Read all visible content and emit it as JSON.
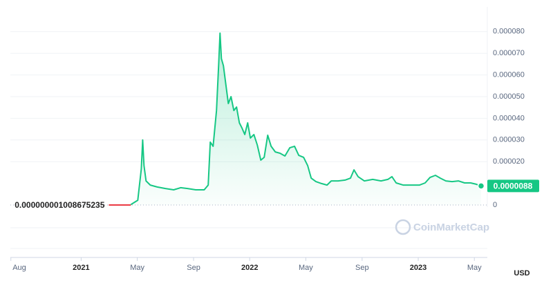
{
  "chart_data": {
    "type": "line",
    "series": [
      {
        "color": "#ea3943",
        "x": [
          2021.164,
          2021.295
        ],
        "values": [
          1.008675235e-09,
          1.008675235e-09
        ]
      },
      {
        "color": "#16c784",
        "fill": true,
        "x": [
          2021.295,
          2021.336,
          2021.357,
          2021.365,
          2021.373,
          2021.385,
          2021.41,
          2021.451,
          2021.5,
          2021.549,
          2021.59,
          2021.631,
          2021.68,
          2021.73,
          2021.754,
          2021.766,
          2021.783,
          2021.803,
          2021.816,
          2021.824,
          2021.832,
          2021.844,
          2021.857,
          2021.873,
          2021.889,
          2021.906,
          2021.922,
          2021.939,
          2021.953,
          2021.971,
          2021.988,
          2022.004,
          2022.025,
          2022.045,
          2022.066,
          2022.086,
          2022.107,
          2022.127,
          2022.152,
          2022.18,
          2022.209,
          2022.238,
          2022.266,
          2022.291,
          2022.32,
          2022.344,
          2022.365,
          2022.393,
          2022.426,
          2022.459,
          2022.484,
          2022.525,
          2022.566,
          2022.598,
          2022.619,
          2022.643,
          2022.68,
          2022.73,
          2022.779,
          2022.82,
          2022.844,
          2022.869,
          2022.91,
          2022.959,
          2023.008,
          2023.041,
          2023.07,
          2023.102,
          2023.131,
          2023.164,
          2023.201,
          2023.238,
          2023.275,
          2023.311,
          2023.344,
          2023.373
        ],
        "values": [
          2e-07,
          2.2e-06,
          1.66e-05,
          3e-05,
          1.82e-05,
          1.11e-05,
          9.2e-06,
          8.3e-06,
          7.6e-06,
          7e-06,
          8e-06,
          7.6e-06,
          7e-06,
          7e-06,
          9.2e-06,
          2.9e-05,
          2.71e-05,
          4.36e-05,
          6.53e-05,
          7.93e-05,
          6.75e-05,
          6.43e-05,
          5.64e-05,
          4.68e-05,
          5e-05,
          4.36e-05,
          4.52e-05,
          3.79e-05,
          3.57e-05,
          3.25e-05,
          3.79e-05,
          3.09e-05,
          3.25e-05,
          2.77e-05,
          2.07e-05,
          2.2e-05,
          3.22e-05,
          2.71e-05,
          2.45e-05,
          2.39e-05,
          2.26e-05,
          2.64e-05,
          2.71e-05,
          2.29e-05,
          2.2e-05,
          1.82e-05,
          1.24e-05,
          1.08e-05,
          9.9e-06,
          9.2e-06,
          1.11e-05,
          1.11e-05,
          1.15e-05,
          1.24e-05,
          1.62e-05,
          1.31e-05,
          1.11e-05,
          1.18e-05,
          1.11e-05,
          1.18e-05,
          1.31e-05,
          1.02e-05,
          9.2e-06,
          9.2e-06,
          9.2e-06,
          1.02e-05,
          1.27e-05,
          1.37e-05,
          1.24e-05,
          1.11e-05,
          1.08e-05,
          1.11e-05,
          1.02e-05,
          1.02e-05,
          9.6e-06,
          8.8e-06
        ]
      }
    ],
    "start_price_label": "0.000000001008675235",
    "last_price_label": "0.0000088",
    "currency_label": "USD",
    "watermark": "CoinMarketCap",
    "xlim": [
      2020.58,
      2023.41
    ],
    "xticks": [
      {
        "value": 2020.583,
        "label": "Aug"
      },
      2021,
      {
        "value": 2021.333,
        "label": "May"
      },
      {
        "value": 2021.667,
        "label": "Sep"
      },
      2022,
      {
        "value": 2022.333,
        "label": "May"
      },
      {
        "value": 2022.667,
        "label": "Sep"
      },
      2023,
      {
        "value": 2023.333,
        "label": "May"
      }
    ],
    "ylim": [
      0,
      9.14e-05
    ],
    "yticks": [
      0,
      {
        "value": 2e-05,
        "label": "0.000020"
      },
      {
        "value": 3e-05,
        "label": "0.000030"
      },
      {
        "value": 4e-05,
        "label": "0.000040"
      },
      {
        "value": 5e-05,
        "label": "0.000050"
      },
      {
        "value": 6e-05,
        "label": "0.000060"
      },
      {
        "value": 7e-05,
        "label": "0.000070"
      },
      {
        "value": 8e-05,
        "label": "0.000080"
      }
    ],
    "grid": true
  }
}
